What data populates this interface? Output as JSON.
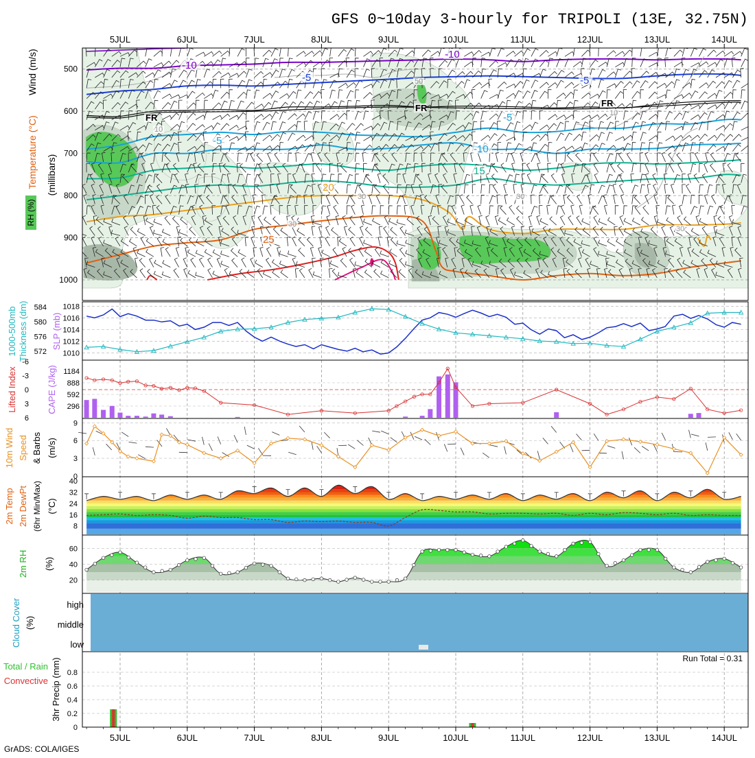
{
  "title": "GFS 0~10day 3-hourly for TRIPOLI (13E, 32.75N)",
  "footer": "GrADS: COLA/IGES",
  "colors": {
    "temp_cold": "#7a00c8",
    "temp_cool": "#1a3fd8",
    "temp_mild": "#1aa0d8",
    "temp_green": "#10b090",
    "temp_warm": "#e8a020",
    "temp_hot": "#e06010",
    "temp_vhot": "#e02020",
    "temp_extreme": "#e0107a",
    "freeze": "#000000",
    "rh_light": "#e6f2e6",
    "rh_mid": "#c8d8c8",
    "rh_dark": "#a8b8a8",
    "rh_green": "#58c858",
    "slp": "#1a2fc8",
    "thickness": "#20b8c0",
    "cape_bar": "#b060f0",
    "lifted_index": "#d83030",
    "wind10": "#e89020",
    "cloud_low": "#6aaed6",
    "precip_total": "#30c030",
    "precip_conv": "#e03030"
  },
  "x_axis": {
    "top_labels": [
      "5JUL",
      "6JUL",
      "7JUL",
      "8JUL",
      "9JUL",
      "10JUL",
      "11JUL",
      "12JUL",
      "13JUL",
      "14JUL"
    ],
    "bottom_labels": [
      "5JUL",
      "6JUL",
      "7JUL",
      "8JUL",
      "9JUL",
      "10JUL",
      "11JUL",
      "12JUL",
      "13JUL",
      "14JUL"
    ]
  },
  "panels": {
    "upper": {
      "ylabel_wind": "Wind (m/s)",
      "ylabel_temp": "Temperature (°C)",
      "ylabel_rh": "RH (%)",
      "ylabel_unit": "(millibars)",
      "y_ticks": [
        "500",
        "600",
        "700",
        "800",
        "900",
        "1000"
      ],
      "contour_labels": [
        "-10",
        "-10",
        "-5",
        "-5",
        "-5",
        "-5",
        "-10",
        "15",
        "20",
        "25",
        "FR",
        "FR",
        "FR",
        "10",
        "10",
        "30",
        "30",
        "30",
        "30",
        "50"
      ]
    },
    "slp": {
      "ylabel_left_1": "1000-500mb",
      "ylabel_left_2": "Thickness (dm)",
      "ylabel_right": "SLP (mb)",
      "thickness_ticks": [
        "584",
        "580",
        "576",
        "572"
      ],
      "slp_ticks": [
        "1018",
        "1016",
        "1014",
        "1012",
        "1010"
      ]
    },
    "cape": {
      "ylabel_li": "Lifted Index",
      "ylabel_cape": "CAPE (J/kg)",
      "li_ticks": [
        "-6",
        "-3",
        "0",
        "3",
        "6"
      ],
      "cape_ticks": [
        "1184",
        "888",
        "592",
        "296"
      ]
    },
    "wind10": {
      "ylabel_1": "10m Wind",
      "ylabel_2": "Speed",
      "ylabel_3": "& Barbs",
      "ylabel_unit": "(m/s)",
      "y_ticks": [
        "9",
        "6",
        "3",
        "0"
      ]
    },
    "temp2m": {
      "ylabel_1": "2m Temp",
      "ylabel_2": "2m DewPt",
      "ylabel_3": "(6hr Min/Max)",
      "ylabel_unit": "(°C)",
      "y_ticks": [
        "40",
        "32",
        "24",
        "16",
        "8"
      ]
    },
    "rh2m": {
      "ylabel_1": "2m RH",
      "ylabel_unit": "(%)",
      "y_ticks": [
        "60",
        "40",
        "20"
      ]
    },
    "cloud": {
      "ylabel_1": "Cloud Cover",
      "ylabel_unit": "(%)",
      "levels": [
        "high",
        "middle",
        "low"
      ]
    },
    "precip": {
      "ylabel_1": "Total / Rain",
      "ylabel_2": "Convective",
      "ylabel_3": "3hr Precip (mm)",
      "y_ticks": [
        "0.8",
        "0.6",
        "0.4",
        "0.2",
        "0"
      ],
      "run_total": "Run Total = 0.31"
    }
  },
  "chart_data": [
    {
      "type": "line",
      "panel": "slp",
      "x_unit": "days since 5JUL 00Z",
      "slp_series": {
        "name": "SLP (mb)",
        "x": [
          -0.5,
          -0.38,
          -0.25,
          -0.12,
          0,
          0.12,
          0.25,
          0.38,
          0.5,
          0.62,
          0.75,
          0.88,
          1,
          1.12,
          1.25,
          1.38,
          1.5,
          1.62,
          1.75,
          1.88,
          2,
          2.12,
          2.25,
          2.38,
          2.5,
          2.62,
          2.75,
          2.88,
          3,
          3.12,
          3.25,
          3.38,
          3.5,
          3.62,
          3.75,
          3.88,
          4,
          4.12,
          4.25,
          4.38,
          4.5,
          4.62,
          4.75,
          4.88,
          5,
          5.12,
          5.25,
          5.38,
          5.5,
          5.62,
          5.75,
          5.88,
          6,
          6.12,
          6.25,
          6.38,
          6.5,
          6.62,
          6.75,
          6.88,
          7,
          7.12,
          7.25,
          7.38,
          7.5,
          7.62,
          7.75,
          7.88,
          8,
          8.12,
          8.25,
          8.38,
          8.5,
          8.62,
          8.75,
          8.88,
          9,
          9.12,
          9.25
        ],
        "values": [
          1016.3,
          1016,
          1016.5,
          1017.5,
          1016.2,
          1016.7,
          1016.3,
          1015.6,
          1015.6,
          1015.3,
          1015.5,
          1014.6,
          1014.9,
          1014,
          1014.4,
          1015.2,
          1015.2,
          1014.7,
          1015.2,
          1013.7,
          1012.7,
          1012,
          1012.7,
          1012,
          1011.5,
          1011.1,
          1011.4,
          1010.7,
          1011.4,
          1011,
          1010.6,
          1010.3,
          1010.8,
          1010.2,
          1010.5,
          1009.8,
          1010,
          1011,
          1012.5,
          1014.2,
          1015.6,
          1016,
          1016.9,
          1016.6,
          1016.1,
          1016.7,
          1017.3,
          1016.8,
          1016.2,
          1016.6,
          1016.1,
          1014.9,
          1015.1,
          1014,
          1013.2,
          1014.1,
          1013.8,
          1012.6,
          1013.1,
          1012.3,
          1012.7,
          1013.4,
          1014.3,
          1014.5,
          1015,
          1014.5,
          1015.1,
          1013.8,
          1014.1,
          1014.5,
          1016.3,
          1016.6,
          1015.9,
          1016.4,
          1015.8,
          1014.8,
          1014.4,
          1015.2,
          1014.9
        ]
      },
      "thickness_series": {
        "name": "Thickness (dm)",
        "x": [
          -0.5,
          -0.25,
          0,
          0.25,
          0.5,
          0.75,
          1,
          1.25,
          1.5,
          1.75,
          2,
          2.25,
          2.5,
          2.75,
          3,
          3.25,
          3.5,
          3.75,
          4,
          4.25,
          4.5,
          4.75,
          5,
          5.25,
          5.5,
          5.75,
          6,
          6.25,
          6.5,
          6.75,
          7,
          7.25,
          7.5,
          7.75,
          8,
          8.25,
          8.5,
          8.75,
          9,
          9.25
        ],
        "values": [
          573.1,
          573.3,
          572.5,
          571.9,
          572.2,
          573.4,
          574.6,
          575.8,
          577.4,
          578.0,
          578.1,
          578.5,
          579.8,
          580.6,
          580.9,
          581.2,
          582.5,
          583.5,
          583.3,
          581.4,
          579.5,
          578.0,
          577.0,
          576.6,
          576.2,
          575.8,
          575.4,
          574.8,
          574.6,
          574.1,
          574.2,
          573.6,
          573.3,
          575.3,
          577.4,
          578.5,
          579.7,
          582.3,
          582.5,
          582.5
        ]
      }
    },
    {
      "type": "bar",
      "panel": "cape",
      "x_unit": "days since 5JUL 00Z",
      "cape_series": {
        "name": "CAPE (J/kg)",
        "x": [
          -0.5,
          -0.38,
          -0.25,
          -0.12,
          0,
          0.12,
          0.25,
          0.38,
          0.5,
          0.62,
          0.75,
          1.75,
          4.25,
          4.5,
          4.62,
          4.75,
          4.88,
          5,
          6.5,
          8.5,
          8.62
        ],
        "values": [
          450,
          480,
          200,
          300,
          130,
          50,
          50,
          30,
          110,
          80,
          40,
          20,
          30,
          50,
          220,
          1050,
          1100,
          900,
          140,
          100,
          120
        ]
      },
      "li_series": {
        "name": "Lifted Index",
        "x": [
          -0.5,
          -0.38,
          -0.25,
          -0.12,
          0,
          0.12,
          0.25,
          0.38,
          0.5,
          0.62,
          0.75,
          0.88,
          1,
          1.12,
          1.25,
          1.5,
          2,
          2.5,
          3,
          3.5,
          4,
          4.12,
          4.25,
          4.38,
          4.5,
          4.62,
          4.75,
          4.88,
          5,
          5.25,
          5.5,
          6,
          6.5,
          7,
          7.25,
          7.5,
          7.75,
          8,
          8.25,
          8.5,
          8.75,
          9,
          9.25
        ],
        "values": [
          -2.5,
          -2,
          -2.2,
          -2,
          -1.4,
          -1.7,
          -1.8,
          -0.9,
          -0.8,
          -0.2,
          -0.4,
          0.1,
          -0.4,
          -0.3,
          0.3,
          2.8,
          3.3,
          5.3,
          4.5,
          5,
          4.5,
          3.5,
          2.5,
          1.5,
          1,
          1,
          -1.5,
          -4.5,
          -0.5,
          3.5,
          3,
          2.8,
          0,
          3,
          5.3,
          4.2,
          2.6,
          1.6,
          2,
          -0.2,
          4.2,
          5,
          4.4
        ]
      }
    },
    {
      "type": "line",
      "panel": "wind10",
      "x_unit": "days since 5JUL 00Z",
      "series": [
        {
          "name": "10m Wind Speed (m/s)",
          "x": [
            -0.5,
            -0.38,
            -0.25,
            -0.12,
            0,
            0.12,
            0.25,
            0.5,
            0.62,
            0.75,
            0.88,
            1,
            1.25,
            1.5,
            1.75,
            2,
            2.25,
            2.5,
            2.75,
            3,
            3.25,
            3.5,
            3.75,
            4,
            4.25,
            4.5,
            4.75,
            5,
            5.25,
            5.5,
            5.75,
            6,
            6.25,
            6.5,
            6.75,
            7,
            7.25,
            7.5,
            7.75,
            8,
            8.25,
            8.5,
            8.75,
            9,
            9.25
          ],
          "values": [
            5.5,
            8.4,
            7.2,
            5.7,
            4.2,
            3.3,
            3,
            2.5,
            7,
            6.8,
            5.7,
            5.3,
            3.9,
            3,
            4.3,
            2.2,
            5.5,
            6.4,
            6.2,
            5.2,
            3.3,
            1.5,
            5.2,
            4.4,
            6.5,
            7.8,
            6.8,
            7.5,
            5.5,
            5.5,
            5.9,
            3.8,
            2.6,
            4.1,
            5.7,
            1.5,
            5.9,
            6.2,
            5.8,
            5.3,
            4.6,
            3.9,
            0.5,
            6.5,
            3.6
          ]
        }
      ]
    },
    {
      "type": "area",
      "panel": "temp2m",
      "x_unit": "days since 5JUL 00Z",
      "series": [
        {
          "name": "2m Temp (°C)",
          "x": [
            -0.5,
            -0.25,
            0,
            0.25,
            0.5,
            0.75,
            1,
            1.25,
            1.5,
            1.75,
            2,
            2.25,
            2.5,
            2.75,
            3,
            3.25,
            3.5,
            3.75,
            4,
            4.25,
            4.5,
            4.75,
            5,
            5.25,
            5.5,
            5.75,
            6,
            6.25,
            6.5,
            6.75,
            7,
            7.25,
            7.5,
            7.75,
            8,
            8.25,
            8.5,
            8.75,
            9,
            9.25
          ],
          "values": [
            26,
            29,
            27,
            29,
            26,
            30,
            27,
            30,
            27,
            33,
            31,
            35,
            29,
            35,
            29,
            37,
            31,
            36,
            27,
            31,
            26,
            29,
            27,
            30,
            27,
            31,
            26,
            30,
            27,
            31,
            26,
            32,
            28,
            33,
            26,
            32,
            28,
            34,
            27,
            29
          ]
        },
        {
          "name": "2m DewPt (°C)",
          "x": [
            -0.5,
            -0.25,
            0,
            0.25,
            0.5,
            0.75,
            1,
            1.25,
            1.5,
            1.75,
            2,
            2.25,
            2.5,
            2.75,
            3,
            3.25,
            3.5,
            3.75,
            4,
            4.25,
            4.5,
            4.75,
            5,
            5.25,
            5.5,
            5.75,
            6,
            6.25,
            6.5,
            6.75,
            7,
            7.25,
            7.5,
            7.75,
            8,
            8.25,
            8.5,
            8.75,
            9,
            9.25
          ],
          "values": [
            15.5,
            16,
            16.5,
            15.5,
            16,
            15.5,
            13.5,
            15,
            14,
            14,
            12.5,
            12.5,
            10.5,
            11.5,
            11,
            11.5,
            10.5,
            10.5,
            8,
            14,
            19.5,
            19,
            18,
            18,
            16.5,
            17,
            17,
            16.5,
            17,
            15.5,
            17,
            16,
            17.5,
            17,
            16,
            17,
            15.5,
            16,
            15.5,
            15.5
          ]
        }
      ]
    },
    {
      "type": "area",
      "panel": "rh2m",
      "x_unit": "days since 5JUL 00Z",
      "series": [
        {
          "name": "2m RH (%)",
          "x": [
            -0.5,
            -0.25,
            0,
            0.25,
            0.5,
            0.75,
            1,
            1.25,
            1.5,
            1.75,
            2,
            2.25,
            2.5,
            2.75,
            3,
            3.25,
            3.5,
            3.75,
            4,
            4.25,
            4.5,
            4.75,
            5,
            5.25,
            5.5,
            5.75,
            6,
            6.25,
            6.5,
            6.75,
            7,
            7.25,
            7.5,
            7.75,
            8,
            8.25,
            8.5,
            8.75,
            9,
            9.25
          ],
          "values": [
            33,
            48,
            55,
            42,
            30,
            33,
            45,
            48,
            28,
            30,
            41,
            38,
            22,
            20,
            22,
            18,
            23,
            18,
            18,
            22,
            56,
            58,
            58,
            52,
            50,
            62,
            70,
            56,
            50,
            66,
            68,
            38,
            45,
            58,
            58,
            36,
            30,
            43,
            47,
            36
          ]
        }
      ]
    },
    {
      "type": "bar",
      "panel": "precip",
      "x_unit": "days since 5JUL 00Z",
      "series": [
        {
          "name": "Total / Rain",
          "x": [
            -0.1,
            5.25
          ],
          "values": [
            0.26,
            0.06
          ]
        },
        {
          "name": "Convective",
          "x": [
            -0.1,
            5.25
          ],
          "values": [
            0.26,
            0.06
          ]
        }
      ],
      "ylim": [
        0,
        1
      ]
    }
  ]
}
